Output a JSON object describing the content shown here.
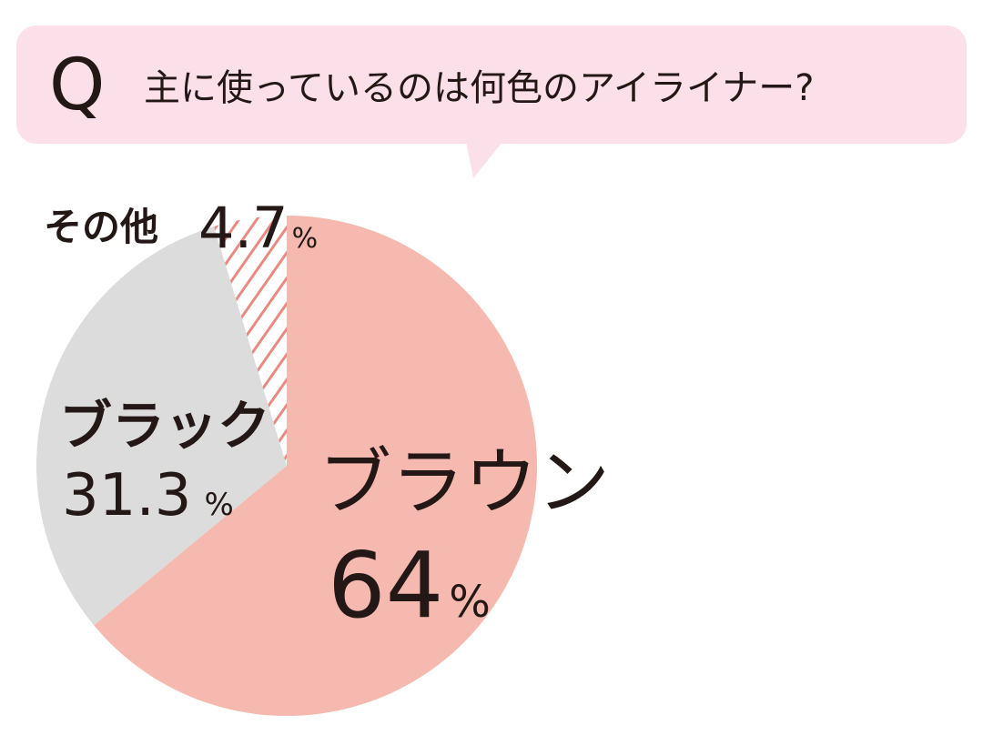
{
  "chart_data": {
    "type": "pie",
    "question_mark": "Q",
    "title": "主に使っているのは何色のアイライナー?",
    "categories": [
      "ブラウン",
      "ブラック",
      "その他"
    ],
    "values": [
      64,
      31.3,
      4.7
    ],
    "unit": "%",
    "colors": [
      "#f5b9af",
      "#dcdcdc",
      "#e88a82"
    ],
    "hatched": [
      false,
      false,
      true
    ]
  }
}
